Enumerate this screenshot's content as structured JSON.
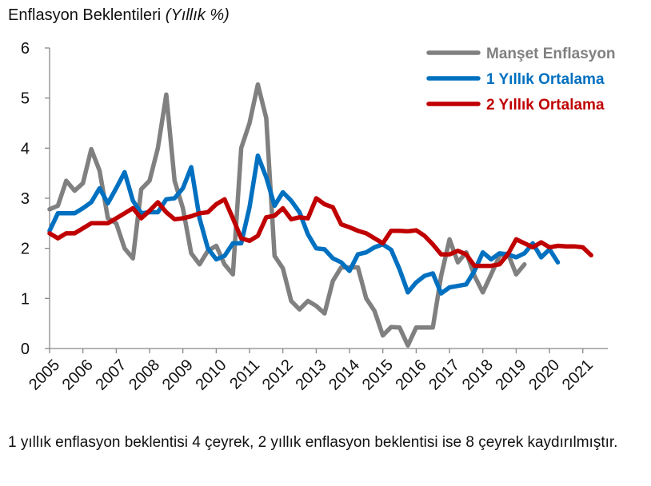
{
  "title": {
    "main": "Enflasyon Beklentileri",
    "unit": "(Yıllık %)"
  },
  "footnote": "1 yıllık enflasyon beklentisi 4 çeyrek, 2 yıllık enflasyon beklentisi ise 8 çeyrek kaydırılmıştır.",
  "chart_data": {
    "type": "line",
    "title": "Enflasyon Beklentileri (Yıllık %)",
    "xlabel": "",
    "ylabel": "",
    "xlim": [
      2005,
      2021.75
    ],
    "ylim": [
      0,
      6
    ],
    "y_ticks": [
      "0",
      "1",
      "2",
      "3",
      "4",
      "5",
      "6"
    ],
    "x_ticks": [
      "2005",
      "2006",
      "2007",
      "2008",
      "2009",
      "2010",
      "2011",
      "2012",
      "2013",
      "2014",
      "2015",
      "2016",
      "2017",
      "2018",
      "2019",
      "2020",
      "2021"
    ],
    "grid": false,
    "legend_position": "top-right",
    "series": [
      {
        "name": "Manşet Enflasyon",
        "color": "#808080",
        "points": [
          [
            2005.0,
            2.78
          ],
          [
            2005.25,
            2.85
          ],
          [
            2005.5,
            3.35
          ],
          [
            2005.75,
            3.15
          ],
          [
            2006.0,
            3.3
          ],
          [
            2006.25,
            3.98
          ],
          [
            2006.5,
            3.55
          ],
          [
            2006.75,
            2.6
          ],
          [
            2007.0,
            2.5
          ],
          [
            2007.25,
            2.0
          ],
          [
            2007.5,
            1.8
          ],
          [
            2007.75,
            3.18
          ],
          [
            2008.0,
            3.35
          ],
          [
            2008.25,
            4.0
          ],
          [
            2008.5,
            5.07
          ],
          [
            2008.75,
            3.35
          ],
          [
            2009.0,
            2.8
          ],
          [
            2009.25,
            1.9
          ],
          [
            2009.5,
            1.68
          ],
          [
            2009.75,
            1.95
          ],
          [
            2010.0,
            2.05
          ],
          [
            2010.25,
            1.68
          ],
          [
            2010.5,
            1.48
          ],
          [
            2010.75,
            4.0
          ],
          [
            2011.0,
            4.5
          ],
          [
            2011.25,
            5.27
          ],
          [
            2011.5,
            4.6
          ],
          [
            2011.75,
            1.85
          ],
          [
            2012.0,
            1.6
          ],
          [
            2012.25,
            0.95
          ],
          [
            2012.5,
            0.78
          ],
          [
            2012.75,
            0.95
          ],
          [
            2013.0,
            0.85
          ],
          [
            2013.25,
            0.7
          ],
          [
            2013.5,
            1.35
          ],
          [
            2013.75,
            1.62
          ],
          [
            2014.0,
            1.62
          ],
          [
            2014.25,
            1.62
          ],
          [
            2014.5,
            1.0
          ],
          [
            2014.75,
            0.75
          ],
          [
            2015.0,
            0.26
          ],
          [
            2015.25,
            0.43
          ],
          [
            2015.5,
            0.42
          ],
          [
            2015.75,
            0.06
          ],
          [
            2016.0,
            0.42
          ],
          [
            2016.25,
            0.42
          ],
          [
            2016.5,
            0.42
          ],
          [
            2016.75,
            1.45
          ],
          [
            2017.0,
            2.18
          ],
          [
            2017.25,
            1.72
          ],
          [
            2017.5,
            1.92
          ],
          [
            2017.75,
            1.45
          ],
          [
            2018.0,
            1.12
          ],
          [
            2018.25,
            1.48
          ],
          [
            2018.5,
            1.85
          ],
          [
            2018.75,
            1.9
          ],
          [
            2019.0,
            1.48
          ],
          [
            2019.25,
            1.68
          ]
        ]
      },
      {
        "name": "1 Yıllık Ortalama",
        "color": "#0070C0",
        "points": [
          [
            2005.0,
            2.35
          ],
          [
            2005.25,
            2.7
          ],
          [
            2005.5,
            2.7
          ],
          [
            2005.75,
            2.7
          ],
          [
            2006.0,
            2.8
          ],
          [
            2006.25,
            2.92
          ],
          [
            2006.5,
            3.2
          ],
          [
            2006.75,
            2.9
          ],
          [
            2007.0,
            3.2
          ],
          [
            2007.25,
            3.52
          ],
          [
            2007.5,
            2.95
          ],
          [
            2007.75,
            2.7
          ],
          [
            2008.0,
            2.72
          ],
          [
            2008.25,
            2.72
          ],
          [
            2008.5,
            2.98
          ],
          [
            2008.75,
            3.0
          ],
          [
            2009.0,
            3.2
          ],
          [
            2009.25,
            3.62
          ],
          [
            2009.5,
            2.6
          ],
          [
            2009.75,
            2.0
          ],
          [
            2010.0,
            1.78
          ],
          [
            2010.25,
            1.85
          ],
          [
            2010.5,
            2.1
          ],
          [
            2010.75,
            2.1
          ],
          [
            2011.0,
            2.82
          ],
          [
            2011.25,
            3.85
          ],
          [
            2011.5,
            3.42
          ],
          [
            2011.75,
            2.85
          ],
          [
            2012.0,
            3.12
          ],
          [
            2012.25,
            2.95
          ],
          [
            2012.5,
            2.72
          ],
          [
            2012.75,
            2.28
          ],
          [
            2013.0,
            2.0
          ],
          [
            2013.25,
            1.98
          ],
          [
            2013.5,
            1.8
          ],
          [
            2013.75,
            1.72
          ],
          [
            2014.0,
            1.55
          ],
          [
            2014.25,
            1.88
          ],
          [
            2014.5,
            1.92
          ],
          [
            2014.75,
            2.02
          ],
          [
            2015.0,
            2.08
          ],
          [
            2015.25,
            1.97
          ],
          [
            2015.5,
            1.58
          ],
          [
            2015.75,
            1.12
          ],
          [
            2016.0,
            1.32
          ],
          [
            2016.25,
            1.45
          ],
          [
            2016.5,
            1.5
          ],
          [
            2016.75,
            1.1
          ],
          [
            2017.0,
            1.22
          ],
          [
            2017.25,
            1.25
          ],
          [
            2017.5,
            1.28
          ],
          [
            2017.75,
            1.55
          ],
          [
            2018.0,
            1.92
          ],
          [
            2018.25,
            1.78
          ],
          [
            2018.5,
            1.9
          ],
          [
            2018.75,
            1.88
          ],
          [
            2019.0,
            1.82
          ],
          [
            2019.25,
            1.9
          ],
          [
            2019.5,
            2.1
          ],
          [
            2019.75,
            1.82
          ],
          [
            2020.0,
            1.98
          ],
          [
            2020.25,
            1.72
          ]
        ]
      },
      {
        "name": "2 Yıllık Ortalama",
        "color": "#C00000",
        "points": [
          [
            2005.0,
            2.3
          ],
          [
            2005.25,
            2.2
          ],
          [
            2005.5,
            2.3
          ],
          [
            2005.75,
            2.3
          ],
          [
            2006.0,
            2.4
          ],
          [
            2006.25,
            2.5
          ],
          [
            2006.5,
            2.5
          ],
          [
            2006.75,
            2.5
          ],
          [
            2007.0,
            2.6
          ],
          [
            2007.25,
            2.7
          ],
          [
            2007.5,
            2.8
          ],
          [
            2007.75,
            2.6
          ],
          [
            2008.0,
            2.75
          ],
          [
            2008.25,
            2.92
          ],
          [
            2008.5,
            2.72
          ],
          [
            2008.75,
            2.58
          ],
          [
            2009.0,
            2.6
          ],
          [
            2009.25,
            2.64
          ],
          [
            2009.5,
            2.7
          ],
          [
            2009.75,
            2.72
          ],
          [
            2010.0,
            2.88
          ],
          [
            2010.25,
            2.98
          ],
          [
            2010.5,
            2.6
          ],
          [
            2010.75,
            2.2
          ],
          [
            2011.0,
            2.15
          ],
          [
            2011.25,
            2.25
          ],
          [
            2011.5,
            2.62
          ],
          [
            2011.75,
            2.65
          ],
          [
            2012.0,
            2.8
          ],
          [
            2012.25,
            2.58
          ],
          [
            2012.5,
            2.62
          ],
          [
            2012.75,
            2.6
          ],
          [
            2013.0,
            3.0
          ],
          [
            2013.25,
            2.88
          ],
          [
            2013.5,
            2.82
          ],
          [
            2013.75,
            2.48
          ],
          [
            2014.0,
            2.42
          ],
          [
            2014.25,
            2.35
          ],
          [
            2014.5,
            2.3
          ],
          [
            2014.75,
            2.2
          ],
          [
            2015.0,
            2.1
          ],
          [
            2015.25,
            2.35
          ],
          [
            2015.5,
            2.35
          ],
          [
            2015.75,
            2.34
          ],
          [
            2016.0,
            2.36
          ],
          [
            2016.25,
            2.25
          ],
          [
            2016.5,
            2.08
          ],
          [
            2016.75,
            1.88
          ],
          [
            2017.0,
            1.88
          ],
          [
            2017.25,
            1.95
          ],
          [
            2017.5,
            1.88
          ],
          [
            2017.75,
            1.65
          ],
          [
            2018.0,
            1.65
          ],
          [
            2018.25,
            1.65
          ],
          [
            2018.5,
            1.68
          ],
          [
            2018.75,
            1.88
          ],
          [
            2019.0,
            2.18
          ],
          [
            2019.25,
            2.1
          ],
          [
            2019.5,
            2.02
          ],
          [
            2019.75,
            2.12
          ],
          [
            2020.0,
            2.02
          ],
          [
            2020.25,
            2.05
          ],
          [
            2020.5,
            2.04
          ],
          [
            2020.75,
            2.04
          ],
          [
            2021.0,
            2.02
          ],
          [
            2021.25,
            1.86
          ]
        ]
      }
    ]
  }
}
